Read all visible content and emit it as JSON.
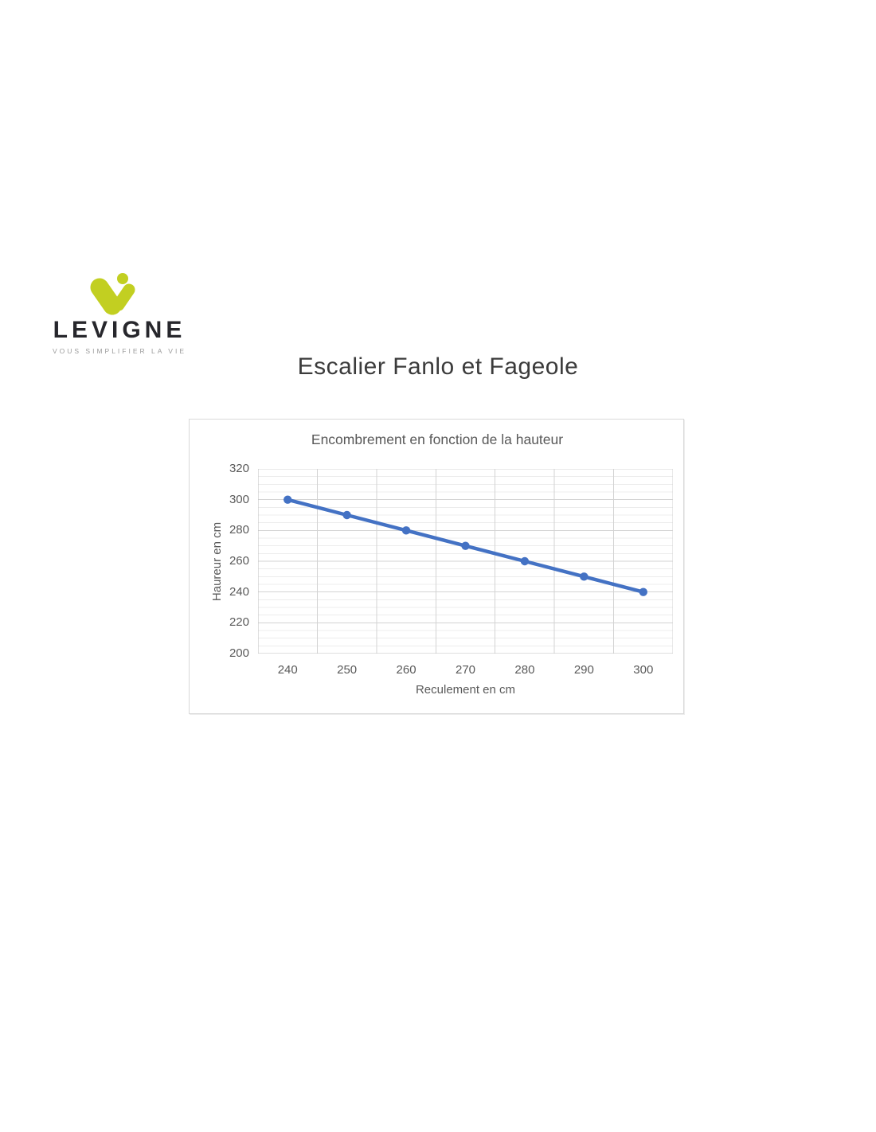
{
  "logo": {
    "brand": "LEVIGNE",
    "tagline": "VOUS SIMPLIFIER LA VIE",
    "mark_color": "#c2cf21",
    "brand_text_color": "#27272c",
    "tagline_color": "#9b9b9b"
  },
  "page_title": "Escalier Fanlo et Fageole",
  "chart_data": {
    "type": "line",
    "title": "Encombrement en fonction de la hauteur",
    "xlabel": "Reculement en cm",
    "ylabel": "Haureur en cm",
    "categories": [
      240,
      250,
      260,
      270,
      280,
      290,
      300
    ],
    "values": [
      300,
      290,
      280,
      270,
      260,
      250,
      240
    ],
    "ylim": [
      200,
      320
    ],
    "y_major_ticks": [
      200,
      220,
      240,
      260,
      280,
      300,
      320
    ],
    "y_major_unit": 20,
    "y_minor_unit": 5,
    "grid": true,
    "legend": "none",
    "line_color": "#4472c4",
    "marker": "circle",
    "colors": {
      "major_grid": "#d3d3d3",
      "minor_grid": "#ececec",
      "axis_line": "#bfbfbf",
      "label_text": "#595959",
      "card_border": "#d9d9d9"
    }
  }
}
